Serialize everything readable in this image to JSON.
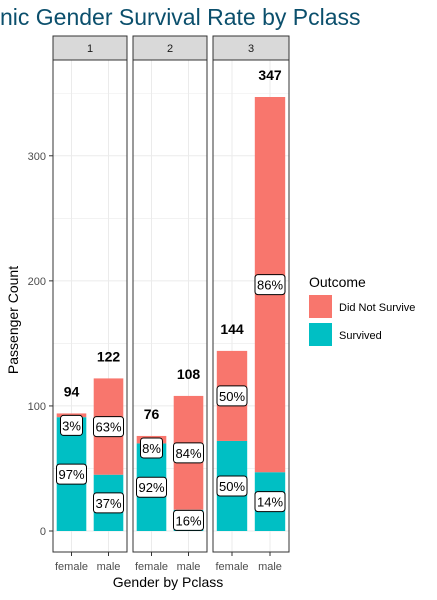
{
  "title": "nic Gender Survival Rate by Pclass",
  "chart_data": {
    "type": "bar",
    "stacked": true,
    "title": "nic Gender Survival Rate by Pclass",
    "xlabel": "Gender by Pclass",
    "ylabel": "Passenger Count",
    "ylim": [
      0,
      350
    ],
    "yticks": [
      0,
      100,
      200,
      300
    ],
    "grid": true,
    "legend_position": "right",
    "legend": {
      "title": "Outcome",
      "items": [
        {
          "label": "Did Not Survive",
          "color": "#f8766d"
        },
        {
          "label": "Survived",
          "color": "#00bfc4"
        }
      ]
    },
    "facets": [
      {
        "label": "1",
        "categories": [
          "female",
          "male"
        ],
        "totals": [
          "94",
          "122"
        ],
        "series": [
          {
            "name": "Survived",
            "values": [
              91,
              45
            ],
            "labels": [
              "97%",
              "37%"
            ]
          },
          {
            "name": "Did Not Survive",
            "values": [
              3,
              77
            ],
            "labels": [
              "3%",
              "63%"
            ]
          }
        ]
      },
      {
        "label": "2",
        "categories": [
          "female",
          "male"
        ],
        "totals": [
          "76",
          "108"
        ],
        "series": [
          {
            "name": "Survived",
            "values": [
              70,
              17
            ],
            "labels": [
              "92%",
              "16%"
            ]
          },
          {
            "name": "Did Not Survive",
            "values": [
              6,
              91
            ],
            "labels": [
              "8%",
              "84%"
            ]
          }
        ]
      },
      {
        "label": "3",
        "categories": [
          "female",
          "male"
        ],
        "totals": [
          "144",
          "347"
        ],
        "series": [
          {
            "name": "Survived",
            "values": [
              72,
              47
            ],
            "labels": [
              "50%",
              "14%"
            ]
          },
          {
            "name": "Did Not Survive",
            "values": [
              72,
              300
            ],
            "labels": [
              "50%",
              "86%"
            ]
          }
        ]
      }
    ]
  }
}
